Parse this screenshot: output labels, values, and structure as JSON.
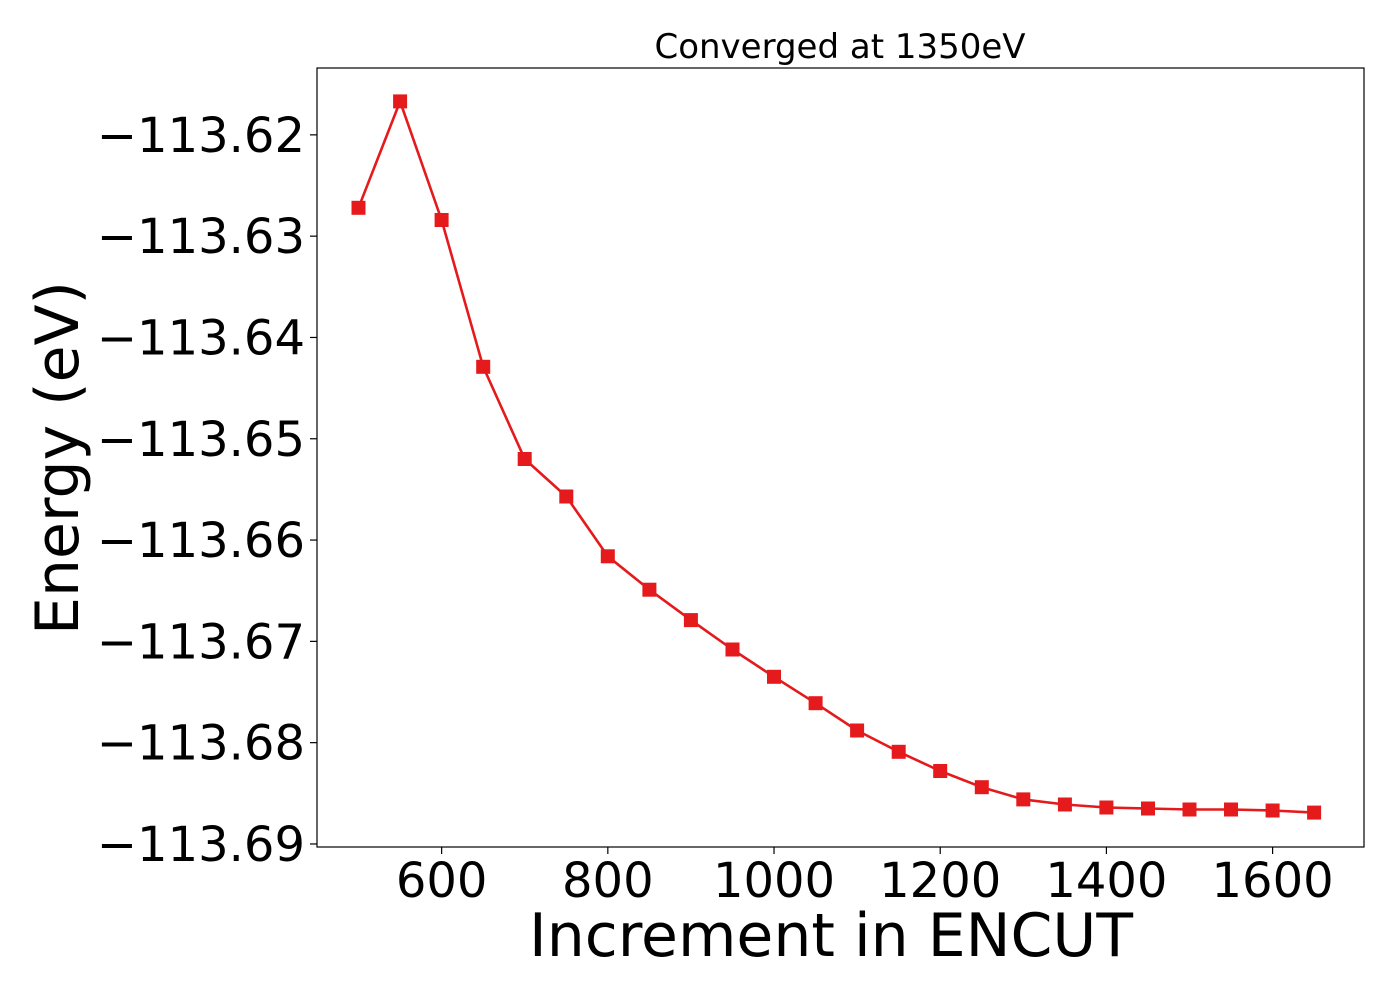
{
  "chart_data": {
    "type": "line",
    "title": "Converged at 1350eV",
    "xlabel": "Increment in ENCUT",
    "ylabel": "Energy (eV)",
    "xlim": [
      450,
      1710
    ],
    "ylim": [
      -113.6903,
      -113.6134
    ],
    "xticks": [
      600,
      800,
      1000,
      1200,
      1400,
      1600
    ],
    "xtick_labels": [
      "600",
      "800",
      "1000",
      "1200",
      "1400",
      "1600"
    ],
    "yticks": [
      -113.62,
      -113.63,
      -113.64,
      -113.65,
      -113.66,
      -113.67,
      -113.68,
      -113.69
    ],
    "ytick_labels": [
      "−113.62",
      "−113.63",
      "−113.64",
      "−113.65",
      "−113.66",
      "−113.67",
      "−113.68",
      "−113.69"
    ],
    "grid": false,
    "series": [
      {
        "color": "#e41a1c",
        "marker": "square",
        "x": [
          500,
          550,
          600,
          650,
          700,
          750,
          800,
          850,
          900,
          950,
          1000,
          1050,
          1100,
          1150,
          1200,
          1250,
          1300,
          1350,
          1400,
          1450,
          1500,
          1550,
          1600,
          1650
        ],
        "y": [
          -113.6272,
          -113.6167,
          -113.6284,
          -113.6429,
          -113.652,
          -113.6557,
          -113.6616,
          -113.6649,
          -113.6679,
          -113.6708,
          -113.6735,
          -113.6761,
          -113.6788,
          -113.6809,
          -113.6828,
          -113.6844,
          -113.6856,
          -113.6861,
          -113.6864,
          -113.6865,
          -113.6866,
          -113.6866,
          -113.6867,
          -113.6869
        ]
      }
    ]
  }
}
